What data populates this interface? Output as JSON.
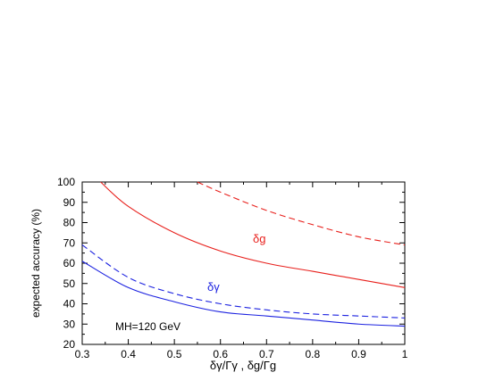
{
  "chart_data": {
    "type": "line",
    "title": "",
    "xlabel": "δγ/Γγ , δg/Γg",
    "ylabel": "expected accuracy (%)",
    "xlim": [
      0.3,
      1.0
    ],
    "ylim": [
      20,
      100
    ],
    "xticks": [
      0.3,
      0.4,
      0.5,
      0.6,
      0.7,
      0.8,
      0.9,
      1.0
    ],
    "xtick_labels": [
      "0.3",
      "0.4",
      "0.5",
      "0.6",
      "0.7",
      "0.8",
      "0.9",
      "1"
    ],
    "yticks": [
      20,
      30,
      40,
      50,
      60,
      70,
      80,
      90,
      100
    ],
    "ytick_labels": [
      "20",
      "30",
      "40",
      "50",
      "60",
      "70",
      "80",
      "90",
      "100"
    ],
    "grid": false,
    "legend": "none",
    "annotations": {
      "mass_label": "MH=120 GeV",
      "delta_g": "δg",
      "delta_gamma": "δγ"
    },
    "series": [
      {
        "color": "#e8201c",
        "dash": false,
        "x": [
          0.34,
          0.4,
          0.5,
          0.6,
          0.7,
          0.8,
          0.9,
          1.0
        ],
        "y": [
          100,
          88,
          75,
          66,
          60,
          56,
          52,
          48
        ]
      },
      {
        "color": "#e8201c",
        "dash": true,
        "x": [
          0.55,
          0.6,
          0.7,
          0.8,
          0.9,
          1.0
        ],
        "y": [
          100,
          95,
          86,
          79,
          73,
          69
        ]
      },
      {
        "color": "#1c22e0",
        "dash": false,
        "x": [
          0.3,
          0.4,
          0.5,
          0.6,
          0.7,
          0.8,
          0.9,
          1.0
        ],
        "y": [
          61,
          48,
          41,
          36,
          34,
          32,
          30,
          29
        ]
      },
      {
        "color": "#1c22e0",
        "dash": true,
        "x": [
          0.3,
          0.4,
          0.5,
          0.6,
          0.7,
          0.8,
          0.9,
          1.0
        ],
        "y": [
          69,
          53,
          45,
          40,
          37,
          35,
          34,
          33
        ]
      }
    ]
  }
}
